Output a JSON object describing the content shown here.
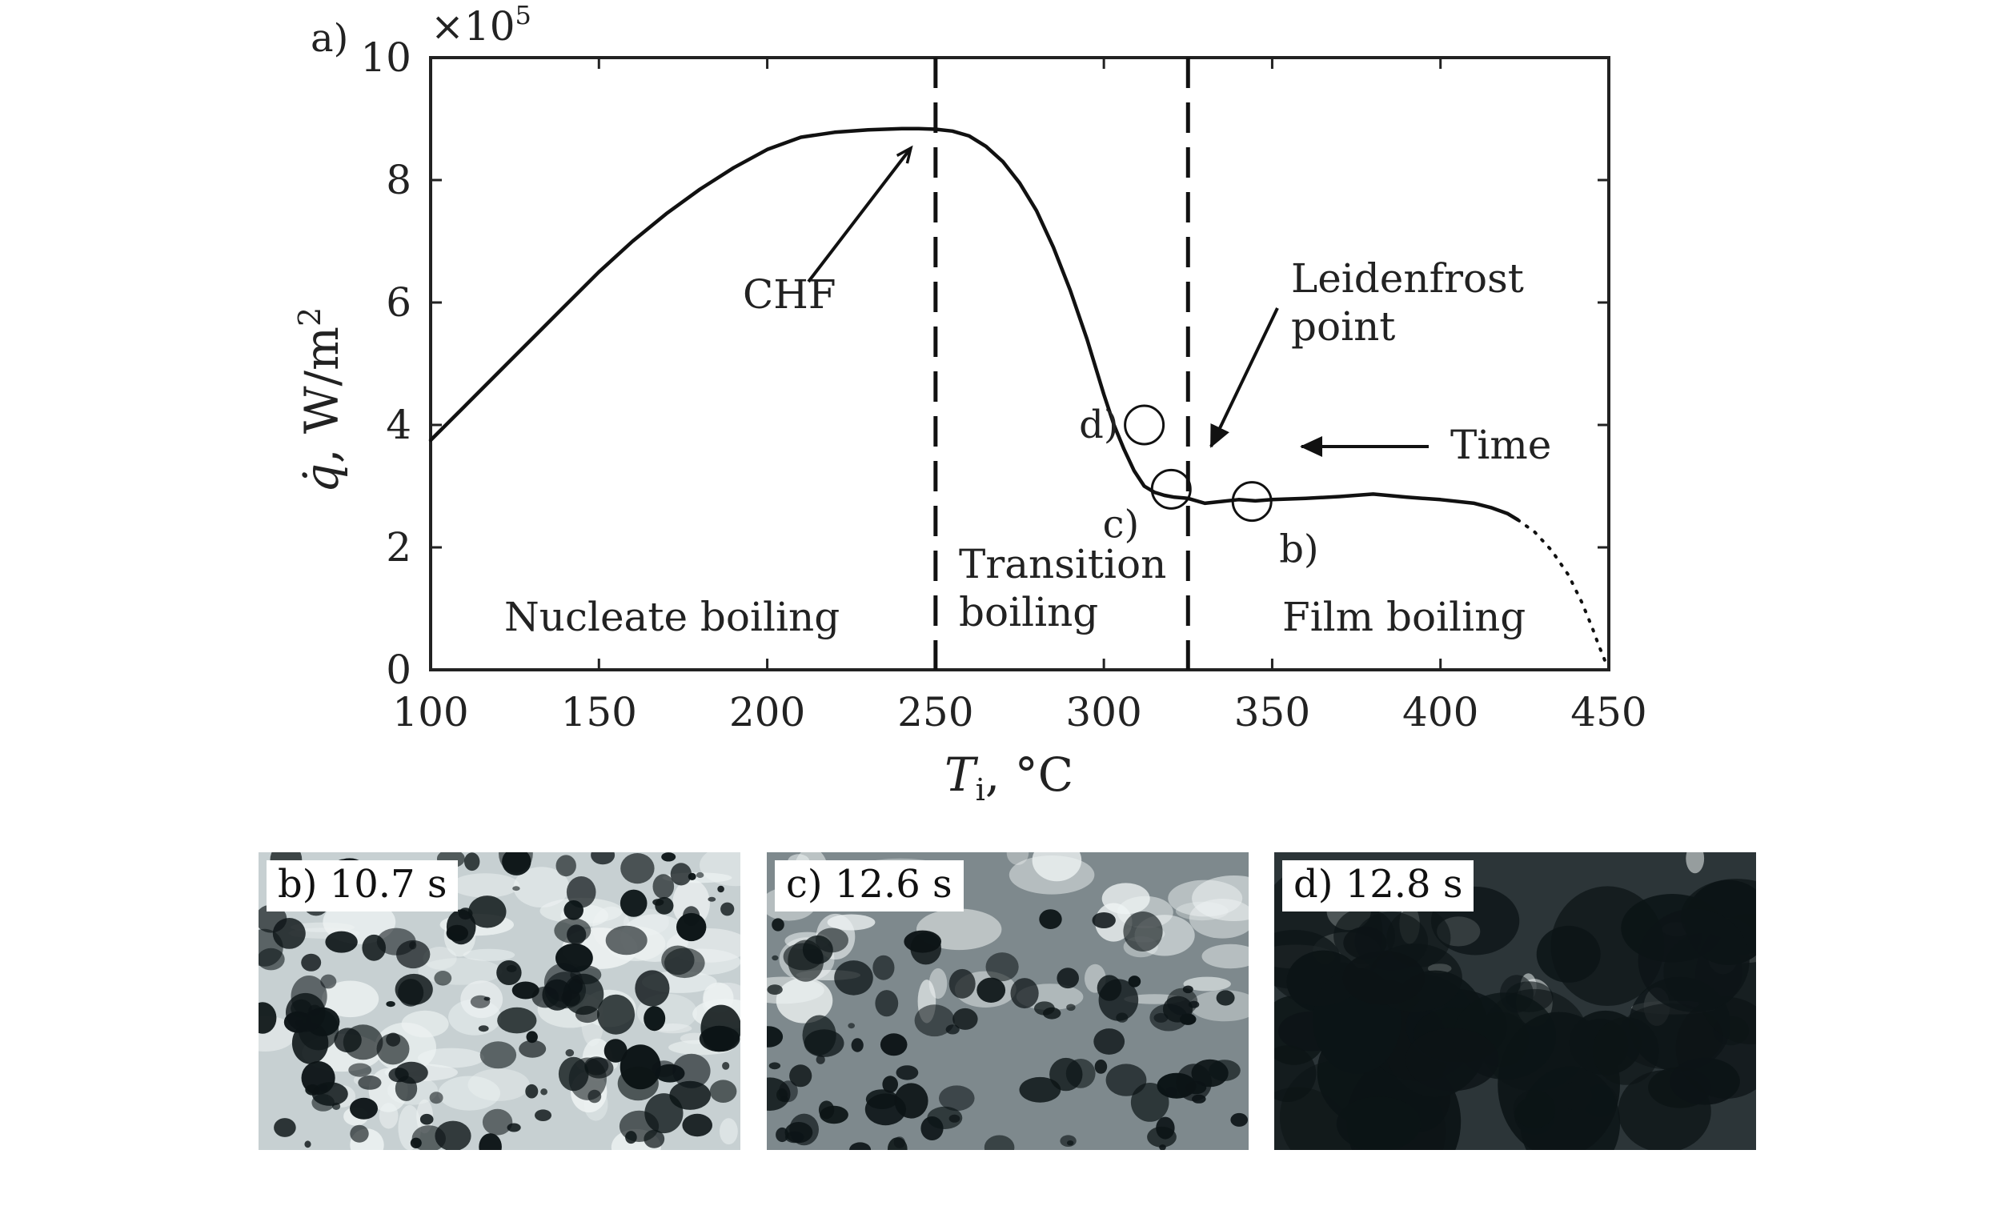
{
  "panel_label": "a)",
  "chart_data": {
    "type": "line",
    "title": "",
    "xlabel": "T_i, °C",
    "ylabel": "q̇, W/m²",
    "y_multiplier": "×10^5",
    "xlim": [
      100,
      450
    ],
    "ylim": [
      0,
      10
    ],
    "xticks": [
      100,
      150,
      200,
      250,
      300,
      350,
      400,
      450
    ],
    "yticks": [
      0,
      2,
      4,
      6,
      8,
      10
    ],
    "grid": false,
    "series": [
      {
        "style": "solid",
        "x": [
          100,
          110,
          120,
          130,
          140,
          150,
          160,
          170,
          180,
          190,
          200,
          210,
          220,
          230,
          240,
          245,
          250,
          255,
          260,
          265,
          270,
          275,
          280,
          285,
          290,
          295,
          300,
          303,
          306,
          309,
          312,
          315,
          318,
          321,
          325,
          330,
          335,
          340,
          345,
          350,
          360,
          370,
          380,
          390,
          400,
          410,
          415,
          420,
          423
        ],
        "y": [
          3.75,
          4.3,
          4.85,
          5.4,
          5.95,
          6.5,
          7.0,
          7.45,
          7.85,
          8.2,
          8.5,
          8.7,
          8.78,
          8.82,
          8.84,
          8.84,
          8.83,
          8.8,
          8.72,
          8.55,
          8.3,
          7.95,
          7.5,
          6.9,
          6.2,
          5.4,
          4.5,
          4.0,
          3.6,
          3.25,
          3.0,
          2.9,
          2.85,
          2.82,
          2.8,
          2.72,
          2.75,
          2.78,
          2.76,
          2.78,
          2.8,
          2.83,
          2.87,
          2.82,
          2.78,
          2.72,
          2.65,
          2.55,
          2.45
        ]
      },
      {
        "style": "dotted",
        "x": [
          423,
          428,
          433,
          438,
          442,
          445,
          447,
          448.5,
          449.5
        ],
        "y": [
          2.45,
          2.25,
          1.95,
          1.55,
          1.1,
          0.7,
          0.4,
          0.2,
          0.05
        ]
      }
    ],
    "vlines": [
      250,
      325
    ],
    "markers": [
      {
        "label": "d)",
        "x": 312,
        "y": 4.0
      },
      {
        "label": "c)",
        "x": 320,
        "y": 2.95
      },
      {
        "label": "b)",
        "x": 344,
        "y": 2.75
      }
    ],
    "annotations": {
      "chf": "CHF",
      "leidenfrost_line1": "Leidenfrost",
      "leidenfrost_line2": "point",
      "time": "Time",
      "nucleate": "Nucleate boiling",
      "transition_line1": "Transition",
      "transition_line2": "boiling",
      "film": "Film boiling"
    }
  },
  "photos": [
    {
      "label": "b) 10.7 s",
      "tone": "light"
    },
    {
      "label": "c) 12.6 s",
      "tone": "medium"
    },
    {
      "label": "d) 12.8 s",
      "tone": "dark"
    }
  ]
}
